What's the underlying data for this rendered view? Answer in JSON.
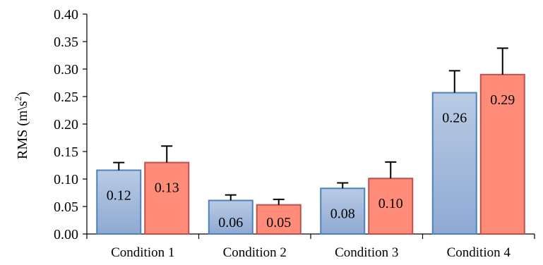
{
  "chart_data": {
    "type": "bar",
    "ylabel": "RMS (m\\s",
    "ylabel_superscript": "2",
    "ylabel_suffix": ")",
    "ylim": [
      0,
      0.4
    ],
    "ytick_step": 0.05,
    "yticks": [
      "0.00",
      "0.05",
      "0.10",
      "0.15",
      "0.20",
      "0.25",
      "0.30",
      "0.35",
      "0.40"
    ],
    "categories": [
      "Condition 1",
      "Condition 2",
      "Condition 3",
      "Condition 4"
    ],
    "series": [
      {
        "values": [
          0.116,
          0.061,
          0.083,
          0.257
        ],
        "labels": [
          "0.12",
          "0.06",
          "0.08",
          "0.26"
        ],
        "errors": [
          0.014,
          0.01,
          0.01,
          0.04
        ],
        "fill_top": "#b9cbe4",
        "fill_bottom": "#8ea9d3",
        "stroke": "#4f81bd"
      },
      {
        "values": [
          0.13,
          0.053,
          0.101,
          0.29
        ],
        "labels": [
          "0.13",
          "0.05",
          "0.10",
          "0.29"
        ],
        "errors": [
          0.03,
          0.01,
          0.03,
          0.048
        ],
        "fill": "#ff8c78",
        "stroke": "#c0504d"
      }
    ],
    "grid": false,
    "legend": "none"
  }
}
